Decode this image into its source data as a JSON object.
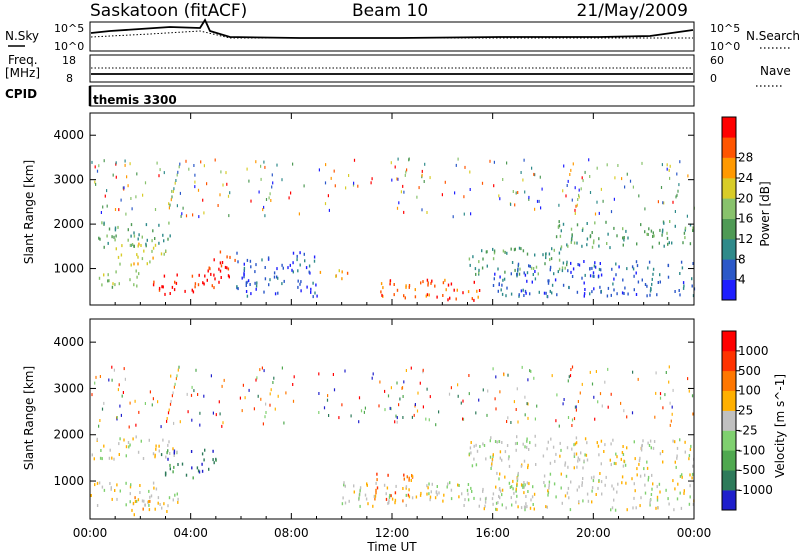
{
  "header": {
    "title": "Saskatoon (fitACF)",
    "beam": "Beam 10",
    "date": "21/May/2009"
  },
  "top_panels": {
    "nsky_label": "N.Sky",
    "nsearch_label": "N.Search",
    "nsky_ticks": [
      "10^5",
      "10^0"
    ],
    "nsearch_ticks": [
      "10^5",
      "10^0"
    ],
    "freq_label_1": "Freq.",
    "freq_label_2": "[MHz]",
    "freq_ticks": [
      "18",
      "8"
    ],
    "nave_label": "Nave",
    "nave_ticks": [
      "60",
      "0"
    ],
    "cpid_label": "CPID",
    "cpid_value": "themis 3300"
  },
  "chart_data": [
    {
      "type": "heatmap",
      "title": "",
      "ylabel": "Slant Range [km]",
      "xlabel": "",
      "x_ticks": [
        "00:00",
        "04:00",
        "08:00",
        "12:00",
        "16:00",
        "20:00",
        "00:00"
      ],
      "y_ticks": [
        "1000",
        "2000",
        "3000",
        "4000"
      ],
      "ylim": [
        180,
        4500
      ],
      "colorbar": {
        "label": "Power [dB]",
        "ticks": [
          "4",
          "8",
          "12",
          "16",
          "20",
          "24",
          "28"
        ],
        "colors": [
          "#1f1fff",
          "#2b58c8",
          "#2f8a8a",
          "#4f9a55",
          "#88c26c",
          "#d8cc28",
          "#ff9900",
          "#ff5500",
          "#ff0000"
        ]
      },
      "regions": [
        {
          "t": [
            0.3,
            3.2
          ],
          "r": [
            1500,
            2100
          ],
          "level": 3
        },
        {
          "t": [
            1.0,
            3.0
          ],
          "r": [
            1100,
            1600
          ],
          "level": 5
        },
        {
          "t": [
            0.3,
            2.0
          ],
          "r": [
            600,
            1000
          ],
          "level": 4
        },
        {
          "t": [
            2.5,
            5.2
          ],
          "r": [
            450,
            900
          ],
          "level": 8
        },
        {
          "t": [
            4.6,
            5.8
          ],
          "r": [
            800,
            1500
          ],
          "level": 8
        },
        {
          "t": [
            5.8,
            9.0
          ],
          "r": [
            400,
            1400
          ],
          "level": 1
        },
        {
          "t": [
            9.0,
            10.3
          ],
          "r": [
            800,
            1000
          ],
          "level": 6
        },
        {
          "t": [
            11.5,
            15.5
          ],
          "r": [
            300,
            800
          ],
          "level": 7
        },
        {
          "t": [
            15.0,
            19.0
          ],
          "r": [
            900,
            1500
          ],
          "level": 3
        },
        {
          "t": [
            18.5,
            24.0
          ],
          "r": [
            1500,
            2100
          ],
          "level": 3
        },
        {
          "t": [
            16.0,
            24.0
          ],
          "r": [
            400,
            1200
          ],
          "level": 1
        }
      ]
    },
    {
      "type": "heatmap",
      "title": "",
      "ylabel": "Slant Range [km]",
      "xlabel": "Time UT",
      "x_ticks": [
        "00:00",
        "04:00",
        "08:00",
        "12:00",
        "16:00",
        "20:00",
        "00:00"
      ],
      "y_ticks": [
        "1000",
        "2000",
        "3000",
        "4000"
      ],
      "ylim": [
        180,
        4500
      ],
      "colorbar": {
        "label": "Velocity [m s^-1]",
        "ticks": [
          "1000",
          "500",
          "100",
          "25",
          "-25",
          "-100",
          "-500",
          "-1000"
        ],
        "colors": [
          "#1f1fcc",
          "#2d7a5a",
          "#4fa84f",
          "#7fd06f",
          "#c0c0c0",
          "#ffb000",
          "#ff7700",
          "#ff3300",
          "#ff0000"
        ]
      },
      "regions": [
        {
          "t": [
            0.0,
            3.5
          ],
          "r": [
            1500,
            2000
          ],
          "level": 4
        },
        {
          "t": [
            0.0,
            3.5
          ],
          "r": [
            500,
            1000
          ],
          "level": 4
        },
        {
          "t": [
            2.8,
            5.0
          ],
          "r": [
            1100,
            1700
          ],
          "level": 1
        },
        {
          "t": [
            1.5,
            3.2
          ],
          "r": [
            300,
            700
          ],
          "level": 5
        },
        {
          "t": [
            11.2,
            12.8
          ],
          "r": [
            600,
            1200
          ],
          "level": 6
        },
        {
          "t": [
            10.0,
            17.5
          ],
          "r": [
            400,
            1000
          ],
          "level": 4
        },
        {
          "t": [
            15.0,
            24.0
          ],
          "r": [
            1300,
            2000
          ],
          "level": 4
        },
        {
          "t": [
            16.0,
            24.0
          ],
          "r": [
            400,
            1200
          ],
          "level": 4
        }
      ]
    }
  ]
}
